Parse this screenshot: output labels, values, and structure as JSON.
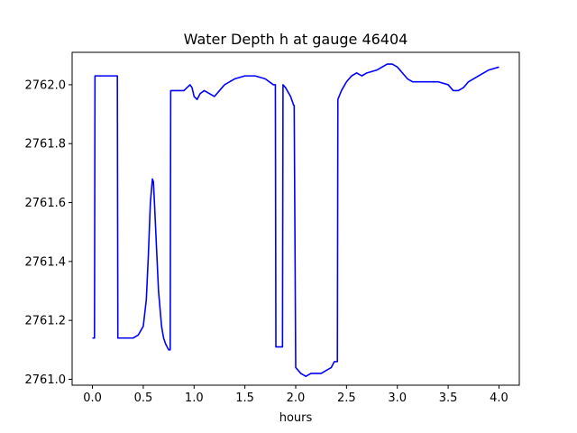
{
  "chart_data": {
    "type": "line",
    "title": "Water Depth h at gauge 46404",
    "xlabel": "hours",
    "ylabel": "",
    "xlim": [
      -0.2,
      4.2
    ],
    "ylim": [
      2760.98,
      2762.11
    ],
    "xticks": [
      0.0,
      0.5,
      1.0,
      1.5,
      2.0,
      2.5,
      3.0,
      3.5,
      4.0
    ],
    "xtick_labels": [
      "0.0",
      "0.5",
      "1.0",
      "1.5",
      "2.0",
      "2.5",
      "3.0",
      "3.5",
      "4.0"
    ],
    "yticks": [
      2761.0,
      2761.2,
      2761.4,
      2761.6,
      2761.8,
      2762.0
    ],
    "ytick_labels": [
      "2761.0",
      "2761.2",
      "2761.4",
      "2761.6",
      "2761.8",
      "2762.0"
    ],
    "grid": false,
    "series": [
      {
        "color": "#0000ff",
        "x": [
          0.0,
          0.02,
          0.025,
          0.05,
          0.1,
          0.15,
          0.2,
          0.24,
          0.245,
          0.25,
          0.3,
          0.35,
          0.4,
          0.45,
          0.5,
          0.53,
          0.55,
          0.57,
          0.59,
          0.6,
          0.61,
          0.63,
          0.65,
          0.68,
          0.7,
          0.72,
          0.75,
          0.765,
          0.77,
          0.8,
          0.85,
          0.9,
          0.93,
          0.96,
          0.98,
          1.0,
          1.03,
          1.06,
          1.1,
          1.15,
          1.2,
          1.25,
          1.3,
          1.4,
          1.5,
          1.55,
          1.6,
          1.7,
          1.78,
          1.8,
          1.805,
          1.85,
          1.87,
          1.875,
          1.9,
          1.95,
          1.98,
          1.985,
          2.0,
          2.05,
          2.1,
          2.15,
          2.2,
          2.25,
          2.3,
          2.35,
          2.38,
          2.4,
          2.41,
          2.415,
          2.45,
          2.5,
          2.55,
          2.6,
          2.65,
          2.7,
          2.8,
          2.9,
          2.95,
          3.0,
          3.05,
          3.1,
          3.15,
          3.2,
          3.25,
          3.3,
          3.4,
          3.5,
          3.55,
          3.6,
          3.65,
          3.7,
          3.8,
          3.9,
          4.0
        ],
        "y": [
          2761.14,
          2761.14,
          2762.03,
          2762.03,
          2762.03,
          2762.03,
          2762.03,
          2762.03,
          2762.03,
          2761.14,
          2761.14,
          2761.14,
          2761.14,
          2761.15,
          2761.18,
          2761.27,
          2761.42,
          2761.6,
          2761.68,
          2761.67,
          2761.6,
          2761.45,
          2761.3,
          2761.18,
          2761.14,
          2761.12,
          2761.1,
          2761.1,
          2761.98,
          2761.98,
          2761.98,
          2761.98,
          2761.99,
          2762.0,
          2761.99,
          2761.96,
          2761.95,
          2761.97,
          2761.98,
          2761.97,
          2761.96,
          2761.98,
          2762.0,
          2762.02,
          2762.03,
          2762.03,
          2762.03,
          2762.02,
          2762.0,
          2762.0,
          2761.11,
          2761.11,
          2761.11,
          2762.0,
          2761.99,
          2761.96,
          2761.93,
          2761.93,
          2761.04,
          2761.02,
          2761.01,
          2761.02,
          2761.02,
          2761.02,
          2761.03,
          2761.04,
          2761.06,
          2761.06,
          2761.06,
          2761.95,
          2761.98,
          2762.01,
          2762.03,
          2762.04,
          2762.03,
          2762.04,
          2762.05,
          2762.07,
          2762.07,
          2762.06,
          2762.04,
          2762.02,
          2762.01,
          2762.01,
          2762.01,
          2762.01,
          2762.01,
          2762.0,
          2761.98,
          2761.98,
          2761.99,
          2762.01,
          2762.03,
          2762.05,
          2762.06
        ]
      }
    ]
  }
}
